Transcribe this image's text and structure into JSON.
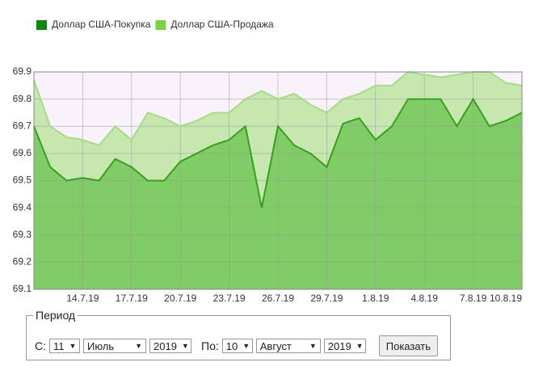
{
  "chart_data": {
    "type": "area",
    "categories": [
      null,
      null,
      null,
      "14.7.19",
      null,
      null,
      "17.7.19",
      null,
      null,
      "20.7.19",
      null,
      null,
      "23.7.19",
      null,
      null,
      "26.7.19",
      null,
      null,
      "29.7.19",
      null,
      null,
      "1.8.19",
      null,
      null,
      "4.8.19",
      null,
      null,
      "7.8.19",
      null,
      null,
      "10.8.19"
    ],
    "series": [
      {
        "name": "Доллар США-Продажа",
        "color": "#7cd043",
        "fill": "#c6e8b0",
        "line": "#a5dc86",
        "values": [
          69.87,
          69.7,
          69.66,
          69.65,
          69.63,
          69.7,
          69.65,
          69.75,
          69.73,
          69.7,
          69.72,
          69.75,
          69.75,
          69.8,
          69.83,
          69.8,
          69.82,
          69.78,
          69.75,
          69.8,
          69.82,
          69.85,
          69.85,
          69.9,
          69.89,
          69.88,
          69.89,
          69.9,
          69.9,
          69.86,
          69.85
        ]
      },
      {
        "name": "Доллар США-Покупка",
        "color": "#0a8a0a",
        "fill": "#80cc66",
        "line": "#3a9e1e",
        "values": [
          69.7,
          69.55,
          69.5,
          69.51,
          69.5,
          69.58,
          69.55,
          69.5,
          69.5,
          69.57,
          69.6,
          69.63,
          69.65,
          69.7,
          69.4,
          69.7,
          69.63,
          69.6,
          69.55,
          69.71,
          69.73,
          69.65,
          69.7,
          69.8,
          69.8,
          69.8,
          69.7,
          69.8,
          69.7,
          69.72,
          69.75
        ]
      }
    ],
    "legend_order": [
      1,
      0
    ],
    "ylim": [
      69.1,
      69.9
    ],
    "yticks": [
      69.1,
      69.2,
      69.3,
      69.4,
      69.5,
      69.6,
      69.7,
      69.8,
      69.9
    ],
    "grid": true
  },
  "form": {
    "legend": "Период",
    "from_label": "С:",
    "from_day": "11",
    "from_month": "Июль",
    "from_year": "2019",
    "to_label": "По:",
    "to_day": "10",
    "to_month": "Август",
    "to_year": "2019",
    "button": "Показать"
  }
}
